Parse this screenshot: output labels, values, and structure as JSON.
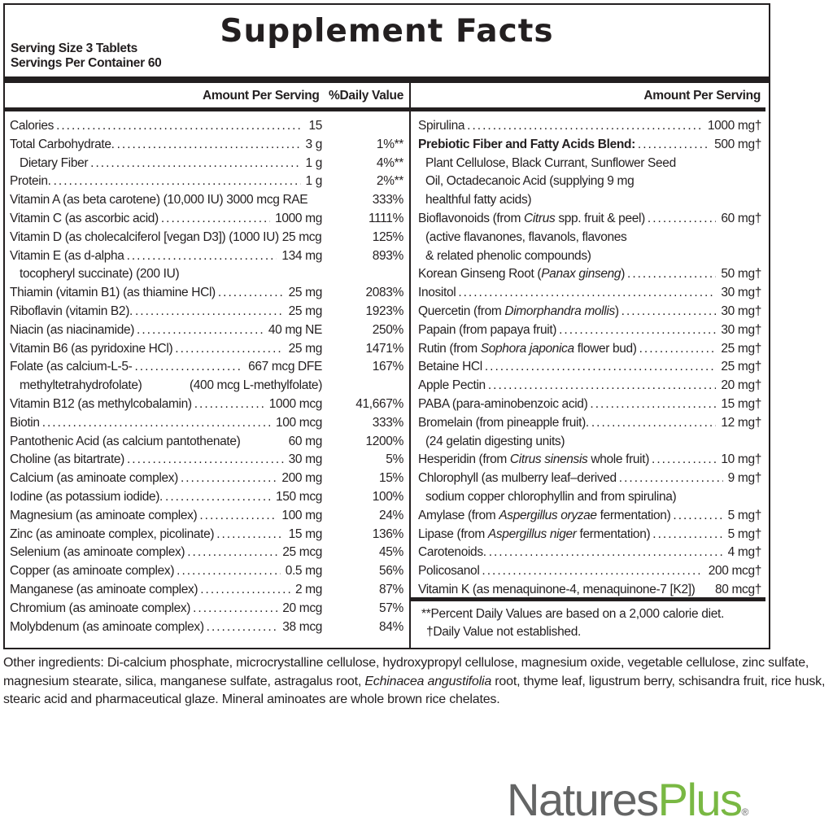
{
  "title": "Supplement Facts",
  "serving_size": "Serving Size 3 Tablets",
  "servings_per_container": "Servings Per Container 60",
  "left_header": {
    "amount": "Amount Per Serving",
    "dv": "%Daily Value"
  },
  "right_header": {
    "amount": "Amount Per Serving"
  },
  "left_items": [
    {
      "name": [
        {
          "t": "Calories"
        }
      ],
      "amount": "15",
      "dv": ""
    },
    {
      "name": [
        {
          "t": "Total Carbohydrate."
        }
      ],
      "amount": "3 g",
      "dv": "1%**"
    },
    {
      "name": [
        {
          "t": "Dietary Fiber"
        }
      ],
      "amount": "1 g",
      "dv": "4%**",
      "indent": true
    },
    {
      "name": [
        {
          "t": "Protein."
        }
      ],
      "amount": "1 g",
      "dv": "2%**"
    },
    {
      "name": [
        {
          "t": "Vitamin A (as beta carotene) (10,000 IU) 3000 mcg RAE"
        }
      ],
      "amount": "",
      "dv": "333%",
      "nodots": true
    },
    {
      "name": [
        {
          "t": "Vitamin C (as ascorbic acid)"
        }
      ],
      "amount": "1000 mg",
      "dv": "1111%"
    },
    {
      "name": [
        {
          "t": "Vitamin D (as cholecalciferol [vegan D3]) (1000 IU) 25 mcg"
        }
      ],
      "amount": "",
      "dv": "125%",
      "nodots": true
    },
    {
      "name": [
        {
          "t": "Vitamin E (as d-alpha"
        }
      ],
      "amount": "134 mg",
      "dv": "893%",
      "cont": [
        {
          "l": "tocopheryl succinate)  (200 IU)"
        }
      ]
    },
    {
      "name": [
        {
          "t": "Thiamin (vitamin B1) (as thiamine HCl)"
        }
      ],
      "amount": "25 mg",
      "dv": "2083%"
    },
    {
      "name": [
        {
          "t": "Riboflavin (vitamin B2)."
        }
      ],
      "amount": "25 mg",
      "dv": "1923%"
    },
    {
      "name": [
        {
          "t": "Niacin (as niacinamide)"
        }
      ],
      "amount": "40 mg NE",
      "dv": "250%"
    },
    {
      "name": [
        {
          "t": "Vitamin B6 (as pyridoxine HCl)"
        }
      ],
      "amount": "25 mg",
      "dv": "1471%"
    },
    {
      "name": [
        {
          "t": "Folate (as calcium-L-5-"
        }
      ],
      "amount": "667 mcg DFE",
      "dv": "167%",
      "cont": [
        {
          "l": "methyltetrahydrofolate)",
          "r": "(400 mcg L-methylfolate)"
        }
      ]
    },
    {
      "name": [
        {
          "t": "Vitamin B12 (as methylcobalamin)"
        }
      ],
      "amount": "1000 mcg",
      "dv": "41,667%"
    },
    {
      "name": [
        {
          "t": "Biotin"
        }
      ],
      "amount": "100 mcg",
      "dv": "333%"
    },
    {
      "name": [
        {
          "t": "Pantothenic Acid (as calcium pantothenate)"
        }
      ],
      "amount": "60 mg",
      "dv": "1200%",
      "nodots": true
    },
    {
      "name": [
        {
          "t": "Choline (as bitartrate)"
        }
      ],
      "amount": "30 mg",
      "dv": "5%"
    },
    {
      "name": [
        {
          "t": "Calcium (as aminoate complex)"
        }
      ],
      "amount": "200 mg",
      "dv": "15%"
    },
    {
      "name": [
        {
          "t": "Iodine (as potassium iodide)."
        }
      ],
      "amount": "150 mcg",
      "dv": "100%"
    },
    {
      "name": [
        {
          "t": "Magnesium (as aminoate complex)"
        }
      ],
      "amount": "100 mg",
      "dv": "24%"
    },
    {
      "name": [
        {
          "t": "Zinc (as aminoate complex, picolinate)"
        }
      ],
      "amount": "15 mg",
      "dv": "136%"
    },
    {
      "name": [
        {
          "t": "Selenium (as aminoate complex)"
        }
      ],
      "amount": "25 mcg",
      "dv": "45%"
    },
    {
      "name": [
        {
          "t": "Copper (as aminoate complex)"
        }
      ],
      "amount": "0.5 mg",
      "dv": "56%"
    },
    {
      "name": [
        {
          "t": "Manganese (as aminoate complex)"
        }
      ],
      "amount": "2 mg",
      "dv": "87%"
    },
    {
      "name": [
        {
          "t": "Chromium (as aminoate complex)"
        }
      ],
      "amount": "20 mcg",
      "dv": "57%"
    },
    {
      "name": [
        {
          "t": "Molybdenum (as aminoate complex)"
        }
      ],
      "amount": "38 mcg",
      "dv": "84%"
    }
  ],
  "right_items": [
    {
      "name": [
        {
          "t": "Spirulina"
        }
      ],
      "amount": "1000 mg†"
    },
    {
      "name": [
        {
          "t": "Prebiotic Fiber and Fatty Acids Blend:",
          "b": true
        }
      ],
      "amount": "500 mg†",
      "cont": [
        {
          "l": "Plant Cellulose, Black Currant, Sunflower Seed"
        },
        {
          "l": "Oil, Octadecanoic Acid (supplying 9 mg"
        },
        {
          "l": "healthful fatty acids)"
        }
      ]
    },
    {
      "name": [
        {
          "t": "Bioflavonoids (from "
        },
        {
          "t": "Citrus",
          "i": true
        },
        {
          "t": " spp. fruit & peel)"
        }
      ],
      "amount": "60 mg†",
      "cont": [
        {
          "l": "(active flavanones, flavanols, flavones"
        },
        {
          "l": "& related phenolic compounds)"
        }
      ]
    },
    {
      "name": [
        {
          "t": "Korean Ginseng Root ("
        },
        {
          "t": "Panax ginseng",
          "i": true
        },
        {
          "t": ")"
        }
      ],
      "amount": "50 mg†"
    },
    {
      "name": [
        {
          "t": "Inositol"
        }
      ],
      "amount": "30 mg†"
    },
    {
      "name": [
        {
          "t": "Quercetin (from "
        },
        {
          "t": "Dimorphandra mollis",
          "i": true
        },
        {
          "t": ")"
        }
      ],
      "amount": "30 mg†"
    },
    {
      "name": [
        {
          "t": "Papain (from papaya fruit)"
        }
      ],
      "amount": "30 mg†"
    },
    {
      "name": [
        {
          "t": "Rutin (from "
        },
        {
          "t": "Sophora japonica",
          "i": true
        },
        {
          "t": " flower bud)"
        }
      ],
      "amount": "25 mg†"
    },
    {
      "name": [
        {
          "t": "Betaine HCl"
        }
      ],
      "amount": "25 mg†"
    },
    {
      "name": [
        {
          "t": "Apple Pectin"
        }
      ],
      "amount": "20 mg†"
    },
    {
      "name": [
        {
          "t": "PABA (para-aminobenzoic acid)"
        }
      ],
      "amount": "15 mg†"
    },
    {
      "name": [
        {
          "t": "Bromelain (from pineapple fruit)."
        }
      ],
      "amount": "12 mg†",
      "cont": [
        {
          "l": "(24 gelatin digesting units)"
        }
      ]
    },
    {
      "name": [
        {
          "t": "Hesperidin (from "
        },
        {
          "t": "Citrus sinensis",
          "i": true
        },
        {
          "t": " whole fruit)"
        }
      ],
      "amount": "10 mg†"
    },
    {
      "name": [
        {
          "t": "Chlorophyll (as mulberry leaf–derived"
        }
      ],
      "amount": "9 mg†",
      "cont": [
        {
          "l": "sodium copper chlorophyllin and from spirulina)"
        }
      ]
    },
    {
      "name": [
        {
          "t": "Amylase (from "
        },
        {
          "t": "Aspergillus oryzae",
          "i": true
        },
        {
          "t": " fermentation)"
        }
      ],
      "amount": "5 mg†"
    },
    {
      "name": [
        {
          "t": "Lipase (from "
        },
        {
          "t": "Aspergillus niger",
          "i": true
        },
        {
          "t": " fermentation)"
        }
      ],
      "amount": "5 mg†"
    },
    {
      "name": [
        {
          "t": "Carotenoids."
        }
      ],
      "amount": "4 mg†"
    },
    {
      "name": [
        {
          "t": "Policosanol"
        }
      ],
      "amount": "200 mcg†"
    },
    {
      "name": [
        {
          "t": "Vitamin K (as menaquinone-4, menaquinone-7 [K2])"
        }
      ],
      "amount": "80 mcg†",
      "nodots": true
    }
  ],
  "footnotes": [
    "**Percent Daily Values are based on a 2,000 calorie diet.",
    "†Daily Value not established."
  ],
  "other_ingredients": [
    {
      "t": "Other ingredients: Di-calcium phosphate, microcrystalline cellulose, hydroxypropyl cellulose, magnesium oxide, vegetable cellulose, zinc sulfate, magnesium stearate, silica, manganese sulfate, astragalus root, "
    },
    {
      "t": "Echinacea angustifolia",
      "i": true
    },
    {
      "t": " root, thyme leaf, ligustrum berry, schisandra fruit, rice husk, stearic acid and pharmaceutical glaze. Mineral aminoates are whole brown rice chelates."
    }
  ],
  "logo": {
    "part1": "Natures",
    "part2": "Plus",
    "mark": "®",
    "color_gray": "#646565",
    "color_green": "#79b843"
  }
}
